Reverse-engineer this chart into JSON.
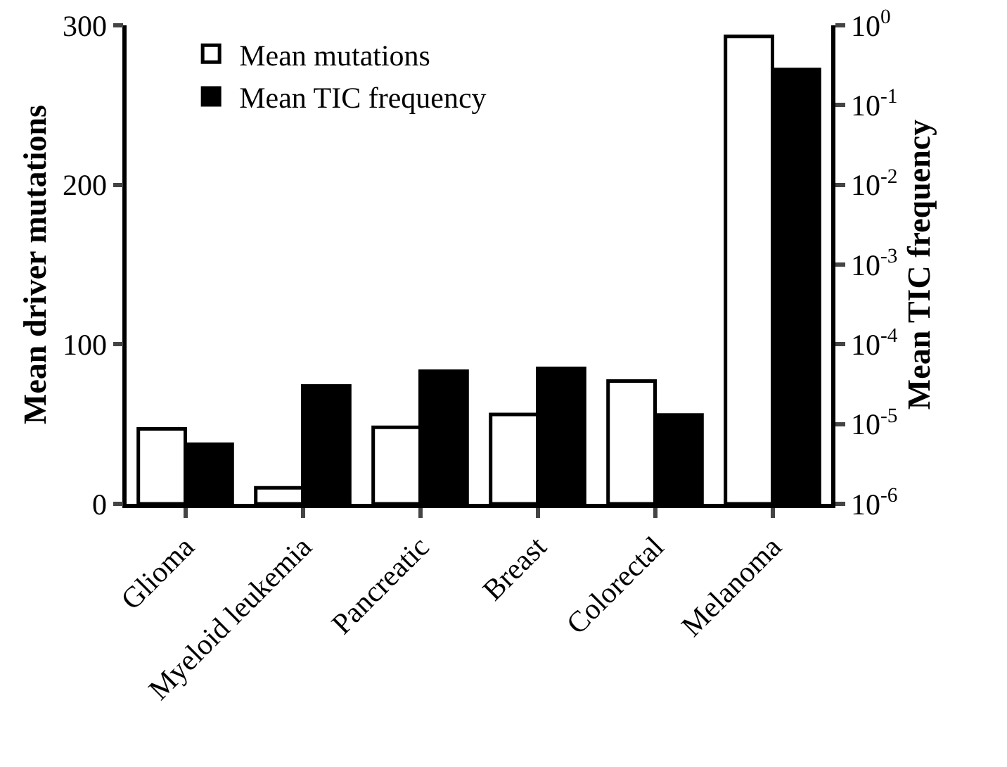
{
  "chart_data": {
    "type": "bar",
    "categories": [
      "Glioma",
      "Myeloid leukemia",
      "Pancreatic",
      "Breast",
      "Colorectal",
      "Melanoma"
    ],
    "ylabel": "Mean driver mutations",
    "y2label": "Mean TIC frequency",
    "series": [
      {
        "name": "Mean mutations",
        "color": "#ffffff",
        "values": [
          47,
          10,
          48,
          56,
          77,
          293
        ]
      },
      {
        "name": "Mean TIC frequency",
        "color": "#000000",
        "axis": "y2",
        "values": [
          5.6e-06,
          3e-05,
          4.6e-05,
          5e-05,
          1.3e-05,
          0.28
        ]
      }
    ],
    "ylim": [
      0,
      300
    ],
    "yticks": [
      0,
      100,
      200,
      300
    ],
    "y2lim": [
      1e-06,
      1
    ],
    "y2ticks": [
      {
        "value": 1e-06,
        "label": "10$^{-6}$"
      },
      {
        "value": 1e-05,
        "label": "10$^{-5}$"
      },
      {
        "value": 0.0001,
        "label": "10$^{-4}$"
      },
      {
        "value": 0.001,
        "label": "10$^{-3}$"
      },
      {
        "value": 0.01,
        "label": "10$^{-2}$"
      },
      {
        "value": 0.1,
        "label": "10$^{-1}$"
      },
      {
        "value": 1,
        "label": "10$^{0}$"
      }
    ],
    "log": "y2",
    "grid": false,
    "legend": "top left"
  }
}
